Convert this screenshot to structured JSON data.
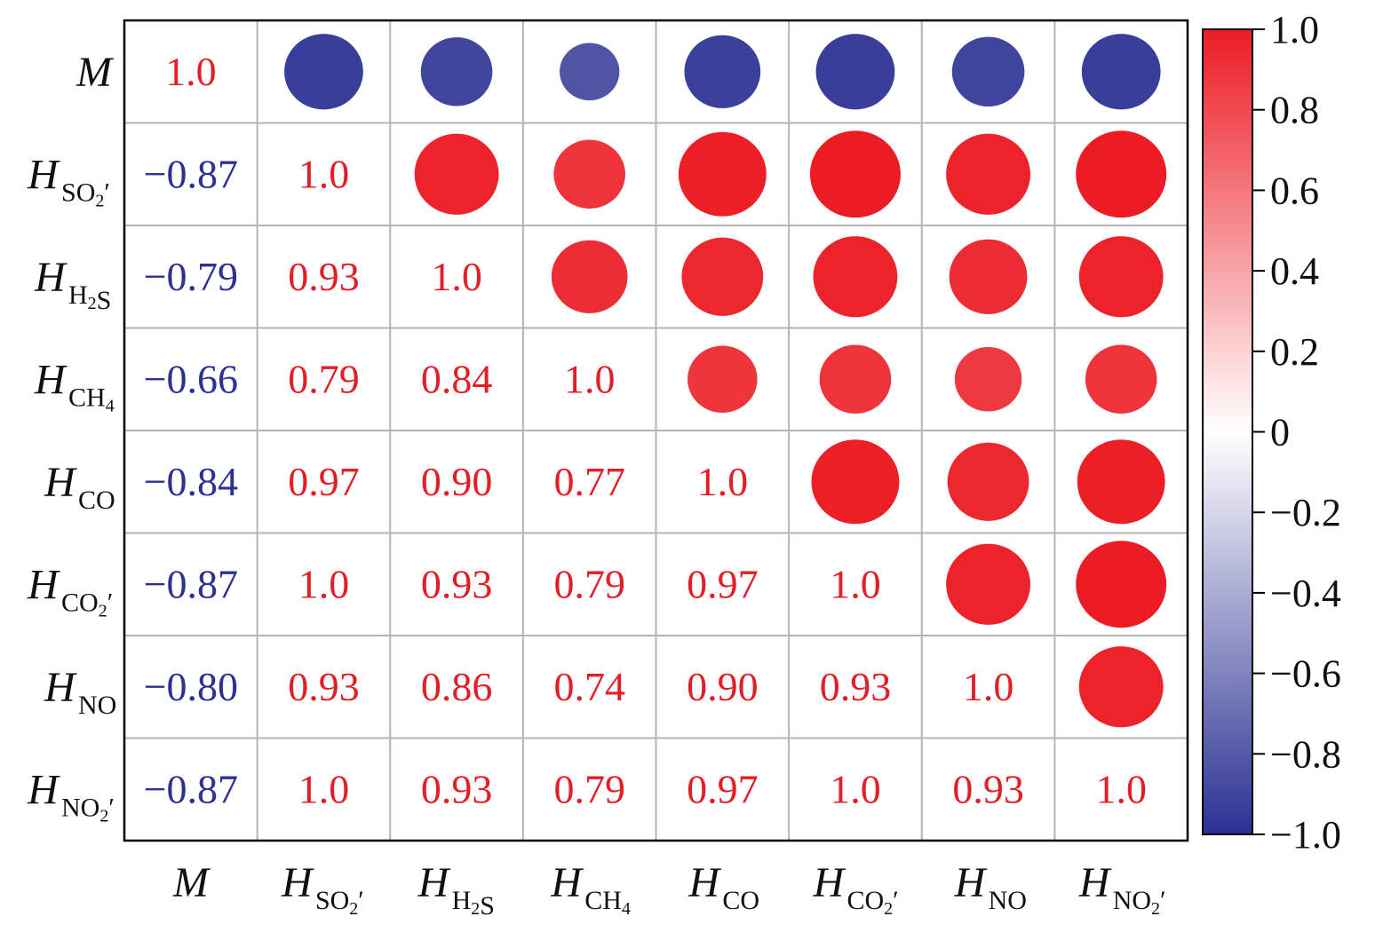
{
  "chart_data": {
    "type": "heatmap",
    "variables": [
      {
        "base": "M",
        "sub": "",
        "prime": false
      },
      {
        "base": "H",
        "sub": "SO2",
        "prime": true
      },
      {
        "base": "H",
        "sub": "H2S",
        "prime": false
      },
      {
        "base": "H",
        "sub": "CH4",
        "prime": false
      },
      {
        "base": "H",
        "sub": "CO",
        "prime": false
      },
      {
        "base": "H",
        "sub": "CO2",
        "prime": true
      },
      {
        "base": "H",
        "sub": "NO",
        "prime": false
      },
      {
        "base": "H",
        "sub": "NO2",
        "prime": true
      }
    ],
    "matrix": [
      [
        1.0,
        -0.87,
        -0.79,
        -0.66,
        -0.84,
        -0.87,
        -0.8,
        -0.87
      ],
      [
        -0.87,
        1.0,
        0.93,
        0.79,
        0.97,
        1.0,
        0.93,
        1.0
      ],
      [
        -0.79,
        0.93,
        1.0,
        0.84,
        0.9,
        0.93,
        0.86,
        0.93
      ],
      [
        -0.66,
        0.79,
        0.84,
        1.0,
        0.77,
        0.79,
        0.74,
        0.79
      ],
      [
        -0.84,
        0.97,
        0.9,
        0.77,
        1.0,
        0.97,
        0.9,
        0.97
      ],
      [
        -0.87,
        1.0,
        0.93,
        0.79,
        0.97,
        1.0,
        0.93,
        1.0
      ],
      [
        -0.8,
        0.93,
        0.86,
        0.74,
        0.9,
        0.93,
        1.0,
        0.93
      ],
      [
        -0.87,
        1.0,
        0.93,
        0.79,
        0.97,
        1.0,
        0.93,
        1.0
      ]
    ],
    "cell_labels": [
      [
        "1.0",
        "",
        "",
        "",
        "",
        "",
        "",
        ""
      ],
      [
        "−0.87",
        "1.0",
        "",
        "",
        "",
        "",
        "",
        ""
      ],
      [
        "−0.79",
        "0.93",
        "1.0",
        "",
        "",
        "",
        "",
        ""
      ],
      [
        "−0.66",
        "0.79",
        "0.84",
        "1.0",
        "",
        "",
        "",
        ""
      ],
      [
        "−0.84",
        "0.97",
        "0.90",
        "0.77",
        "1.0",
        "",
        "",
        ""
      ],
      [
        "−0.87",
        "1.0",
        "0.93",
        "0.79",
        "0.97",
        "1.0",
        "",
        ""
      ],
      [
        "−0.80",
        "0.93",
        "0.86",
        "0.74",
        "0.90",
        "0.93",
        "1.0",
        ""
      ],
      [
        "−0.87",
        "1.0",
        "0.93",
        "0.79",
        "0.97",
        "1.0",
        "0.93",
        "1.0"
      ]
    ],
    "lower_triangle": "numbers",
    "upper_triangle": "circles",
    "circle_size_encodes": "absolute correlation",
    "colorbar": {
      "range": [
        -1.0,
        1.0
      ],
      "ticks": [
        "1.0",
        "0.8",
        "0.6",
        "0.4",
        "0.2",
        "0",
        "−0.2",
        "−0.4",
        "−0.6",
        "−0.8",
        "−1.0"
      ],
      "tick_values": [
        1.0,
        0.8,
        0.6,
        0.4,
        0.2,
        0,
        -0.2,
        -0.4,
        -0.6,
        -0.8,
        -1.0
      ],
      "placement": "right"
    },
    "colors": {
      "positive": "#ec1c24",
      "neutral": "#ffffff",
      "negative": "#2b3192",
      "grid": "#b4b4b4",
      "negative_text": "#2e3192",
      "positive_text": "#e21e26"
    }
  }
}
